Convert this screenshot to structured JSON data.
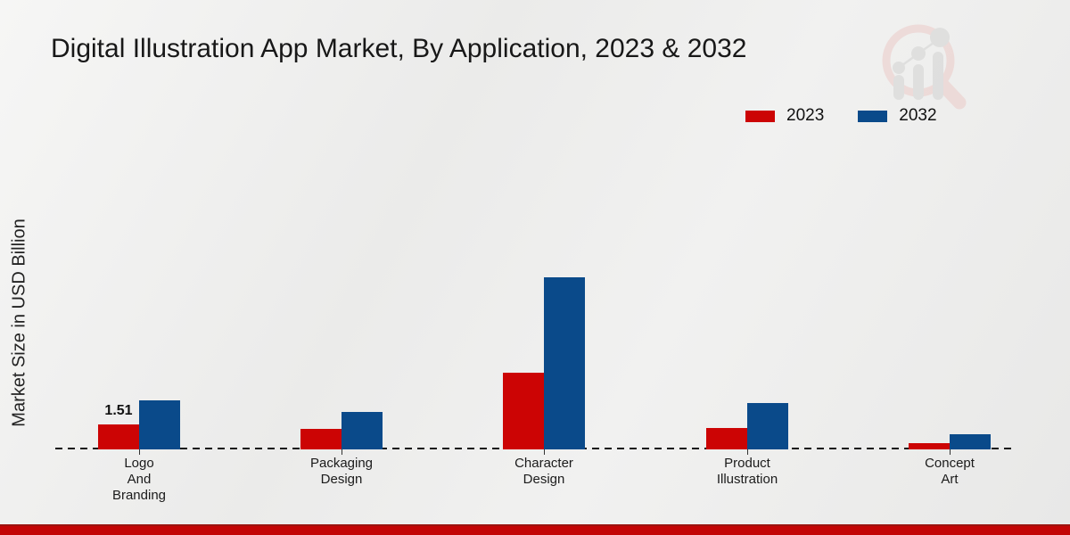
{
  "title": "Digital Illustration App Market, By Application, 2023 & 2032",
  "y_axis_label": "Market Size in USD Billion",
  "legend": {
    "items": [
      {
        "label": "2023",
        "color": "#cc0404"
      },
      {
        "label": "2032",
        "color": "#0a4a8a"
      }
    ]
  },
  "chart_data": {
    "type": "bar",
    "title": "Digital Illustration App Market, By Application, 2023 & 2032",
    "categories": [
      "Logo And Branding",
      "Packaging Design",
      "Character Design",
      "Product Illustration",
      "Concept Art"
    ],
    "series": [
      {
        "name": "2023",
        "color": "#cc0404",
        "values": [
          1.51,
          1.2,
          4.9,
          1.3,
          0.3
        ],
        "data_labels": [
          "1.51",
          "",
          "",
          "",
          ""
        ]
      },
      {
        "name": "2032",
        "color": "#0a4a8a",
        "values": [
          3.1,
          2.3,
          11.1,
          2.9,
          0.9
        ],
        "data_labels": [
          "",
          "",
          "",
          "",
          ""
        ]
      }
    ],
    "xlabel": "",
    "ylabel": "Market Size in USD Billion",
    "ylim": [
      0,
      12
    ],
    "grid": false,
    "axis_style": "dashed-baseline-only",
    "legend_position": "top-right"
  },
  "watermark": {
    "name": "market-research-future-logo"
  },
  "colors": {
    "series_2023": "#cc0404",
    "series_2032": "#0a4a8a",
    "footer_band": "#c30505",
    "background": "#ececeb",
    "text": "#181818"
  }
}
